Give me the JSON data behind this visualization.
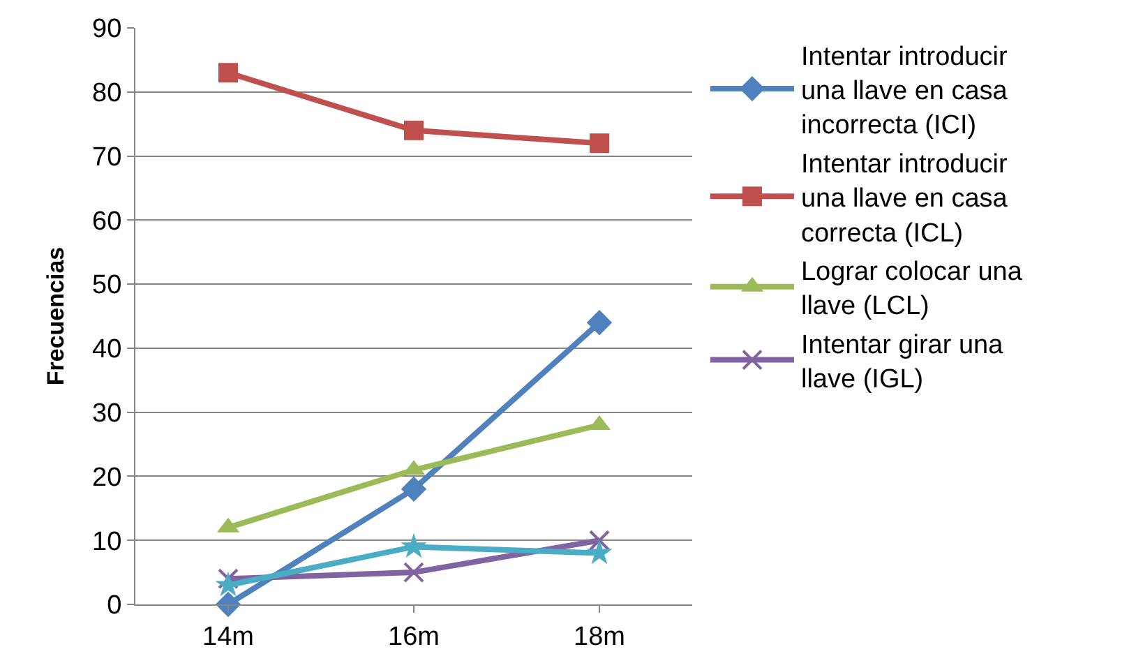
{
  "chart_data": {
    "type": "line",
    "ylabel": "Frecuencias",
    "categories": [
      "14m",
      "16m",
      "18m"
    ],
    "series": [
      {
        "name": "Intentar introducir una llave en casa incorrecta (ICI)",
        "color": "#4f81bd",
        "marker": "diamond",
        "values": [
          0,
          18,
          44
        ]
      },
      {
        "name": "Intentar introducir una llave en casa correcta (ICL)",
        "color": "#c0504d",
        "marker": "square",
        "values": [
          83,
          74,
          72
        ]
      },
      {
        "name": "Lograr colocar una llave (LCL)",
        "color": "#9bbb59",
        "marker": "triangle",
        "values": [
          12,
          21,
          28
        ]
      },
      {
        "name": "Intentar girar una llave (IGL)",
        "color": "#8064a2",
        "marker": "cross",
        "values": [
          4,
          5,
          10
        ]
      },
      {
        "color": "#4bacc6",
        "marker": "star",
        "values": [
          3,
          9,
          8
        ]
      }
    ],
    "ylim": [
      0,
      90
    ],
    "yticks": [
      0,
      10,
      20,
      30,
      40,
      50,
      60,
      70,
      80,
      90
    ],
    "grid": "y",
    "legend": "right",
    "line_style": "solid"
  }
}
